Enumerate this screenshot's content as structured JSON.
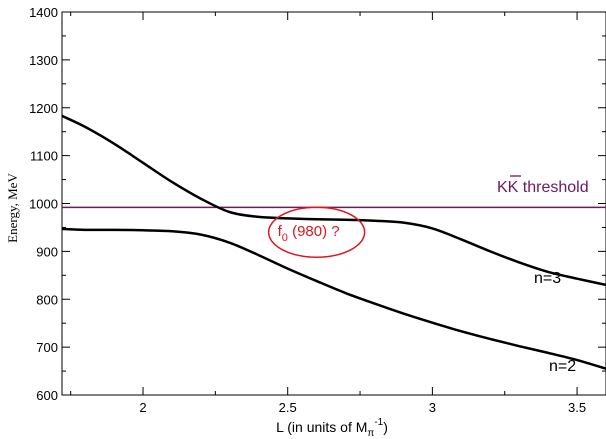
{
  "chart_data": {
    "type": "line",
    "xlabel": "L (in units of M",
    "xlabel_sub": "π",
    "xlabel_sup": "-1",
    "xlabel_close": ")",
    "ylabel": "Energy, MeV",
    "xlim": [
      1.72,
      3.6
    ],
    "ylim": [
      600,
      1400
    ],
    "xticks": [
      2,
      2.5,
      3,
      3.5
    ],
    "xtick_labels": [
      "2",
      "2.5",
      "3",
      "3.5"
    ],
    "yticks": [
      600,
      700,
      800,
      900,
      1000,
      1100,
      1200,
      1300,
      1400
    ],
    "ytick_labels": [
      "600",
      "700",
      "800",
      "900",
      "1000",
      "1100",
      "1200",
      "1300",
      "1400"
    ],
    "grid": false,
    "colors": {
      "curve": "#000000",
      "threshold": "#6b1a5e",
      "annotation": "#e0141e"
    },
    "threshold": {
      "value": 992,
      "label_main": "KK",
      "label_bar": "K",
      "label_rest": " threshold"
    },
    "series": [
      {
        "name": "n=3",
        "x": [
          1.72,
          1.8,
          1.9,
          2.0,
          2.1,
          2.2,
          2.3,
          2.4,
          2.5,
          2.6,
          2.7,
          2.8,
          2.9,
          3.0,
          3.1,
          3.2,
          3.3,
          3.4,
          3.5,
          3.6
        ],
        "y": [
          1183,
          1160,
          1125,
          1085,
          1045,
          1010,
          982,
          972,
          969,
          967,
          966,
          964,
          960,
          948,
          925,
          900,
          877,
          857,
          843,
          830
        ]
      },
      {
        "name": "n=2",
        "x": [
          1.72,
          1.8,
          1.9,
          2.0,
          2.1,
          2.2,
          2.3,
          2.4,
          2.5,
          2.6,
          2.7,
          2.8,
          2.9,
          3.0,
          3.1,
          3.2,
          3.3,
          3.4,
          3.5,
          3.6
        ],
        "y": [
          947,
          945,
          945,
          944,
          942,
          935,
          918,
          892,
          864,
          838,
          813,
          791,
          770,
          751,
          733,
          717,
          702,
          688,
          673,
          655
        ]
      }
    ],
    "annotation": {
      "text": "f",
      "sub": "0",
      "rest": " (980) ?",
      "x": 2.6,
      "y": 940
    }
  }
}
